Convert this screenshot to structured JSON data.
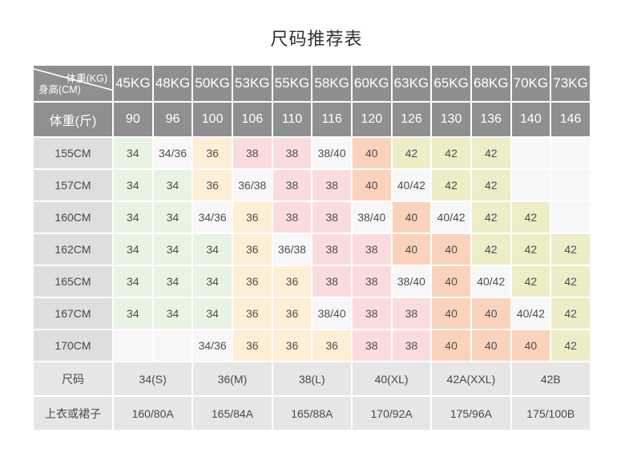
{
  "title": "尺码推荐表",
  "colors": {
    "header_bg": "#8f8f8f",
    "header_text": "#ffffff",
    "row_header_bg": "#dedede",
    "footer_bg": "#e6e6e6",
    "size34": "#e9f3e3",
    "size36": "#fdeed6",
    "size38": "#fadcdf",
    "size40": "#fbd2bc",
    "size42": "#ededc6",
    "mixed": "#f7f7f7",
    "empty": "#f7f7f7"
  },
  "chart_data": {
    "type": "table",
    "title": "尺码推荐表",
    "corner_top_label": "体重(KG)",
    "corner_bottom_label": "身高(CM)",
    "weights_kg": [
      "45KG",
      "48KG",
      "50KG",
      "53KG",
      "55KG",
      "58KG",
      "60KG",
      "63KG",
      "65KG",
      "68KG",
      "70KG",
      "73KG"
    ],
    "jin_label": "体重(斤)",
    "weights_jin": [
      "90",
      "96",
      "100",
      "106",
      "110",
      "116",
      "120",
      "126",
      "130",
      "136",
      "140",
      "146"
    ],
    "body_rows": [
      {
        "height": "155CM",
        "cells": [
          "34",
          "34/36",
          "36",
          "38",
          "38",
          "38/40",
          "40",
          "42",
          "42",
          "42",
          "",
          ""
        ]
      },
      {
        "height": "157CM",
        "cells": [
          "34",
          "34",
          "36",
          "36/38",
          "38",
          "38",
          "40",
          "40/42",
          "42",
          "42",
          "",
          ""
        ]
      },
      {
        "height": "160CM",
        "cells": [
          "34",
          "34",
          "34/36",
          "36",
          "38",
          "38",
          "38/40",
          "40",
          "40/42",
          "42",
          "42",
          ""
        ]
      },
      {
        "height": "162CM",
        "cells": [
          "34",
          "34",
          "34",
          "36",
          "36/38",
          "38",
          "38",
          "40",
          "40",
          "42",
          "42",
          "42"
        ]
      },
      {
        "height": "165CM",
        "cells": [
          "34",
          "34",
          "34",
          "36",
          "36",
          "38",
          "38",
          "38/40",
          "40",
          "40/42",
          "42",
          "42"
        ]
      },
      {
        "height": "167CM",
        "cells": [
          "34",
          "34",
          "34",
          "36",
          "36",
          "38/40",
          "38",
          "38",
          "40",
          "40",
          "40/42",
          "42"
        ]
      },
      {
        "height": "170CM",
        "cells": [
          "",
          "",
          "34/36",
          "36",
          "36",
          "36",
          "38",
          "38",
          "40",
          "40",
          "40",
          "42"
        ]
      }
    ],
    "footer_rows": [
      {
        "label": "尺码",
        "cells": [
          "34(S)",
          "36(M)",
          "38(L)",
          "40(XL)",
          "42A(XXL)",
          "42B"
        ]
      },
      {
        "label": "上衣或裙子",
        "cells": [
          "160/80A",
          "165/84A",
          "165/88A",
          "170/92A",
          "175/96A",
          "175/100B"
        ]
      }
    ]
  }
}
